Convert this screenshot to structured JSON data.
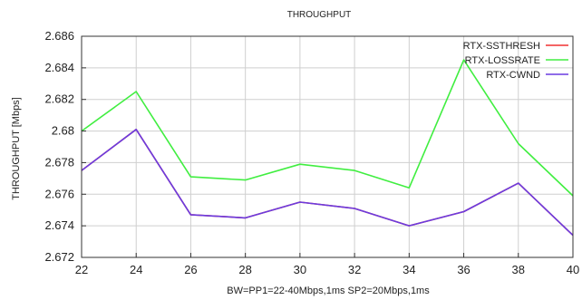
{
  "chart_data": {
    "type": "line",
    "title": "THROUGHPUT",
    "xlabel": "BW=PP1=22-40Mbps,1ms SP2=20Mbps,1ms",
    "ylabel": "THROUGHPUT [Mbps]",
    "x": [
      22,
      24,
      26,
      28,
      30,
      32,
      34,
      36,
      38,
      40
    ],
    "xlim": [
      22,
      40
    ],
    "ylim": [
      2.672,
      2.686
    ],
    "xticks": [
      "22",
      "24",
      "26",
      "28",
      "30",
      "32",
      "34",
      "36",
      "38",
      "40"
    ],
    "yticks": [
      "2.672",
      "2.674",
      "2.676",
      "2.678",
      "2.68",
      "2.682",
      "2.684",
      "2.686"
    ],
    "grid": true,
    "legend_position": "top-right",
    "series": [
      {
        "name": "RTX-SSTHRESH",
        "color": "#f03030",
        "values": [
          2.6775,
          2.6801,
          2.6747,
          2.6745,
          2.6755,
          2.6751,
          2.674,
          2.6749,
          2.6767,
          2.6734
        ]
      },
      {
        "name": "RTX-LOSSRATE",
        "color": "#40ee40",
        "values": [
          2.68,
          2.6825,
          2.6771,
          2.6769,
          2.6779,
          2.6775,
          2.6764,
          2.6845,
          2.6792,
          2.6759
        ]
      },
      {
        "name": "RTX-CWND",
        "color": "#6a3ce0",
        "values": [
          2.6775,
          2.6801,
          2.6747,
          2.6745,
          2.6755,
          2.6751,
          2.674,
          2.6749,
          2.6767,
          2.6734
        ]
      }
    ]
  }
}
